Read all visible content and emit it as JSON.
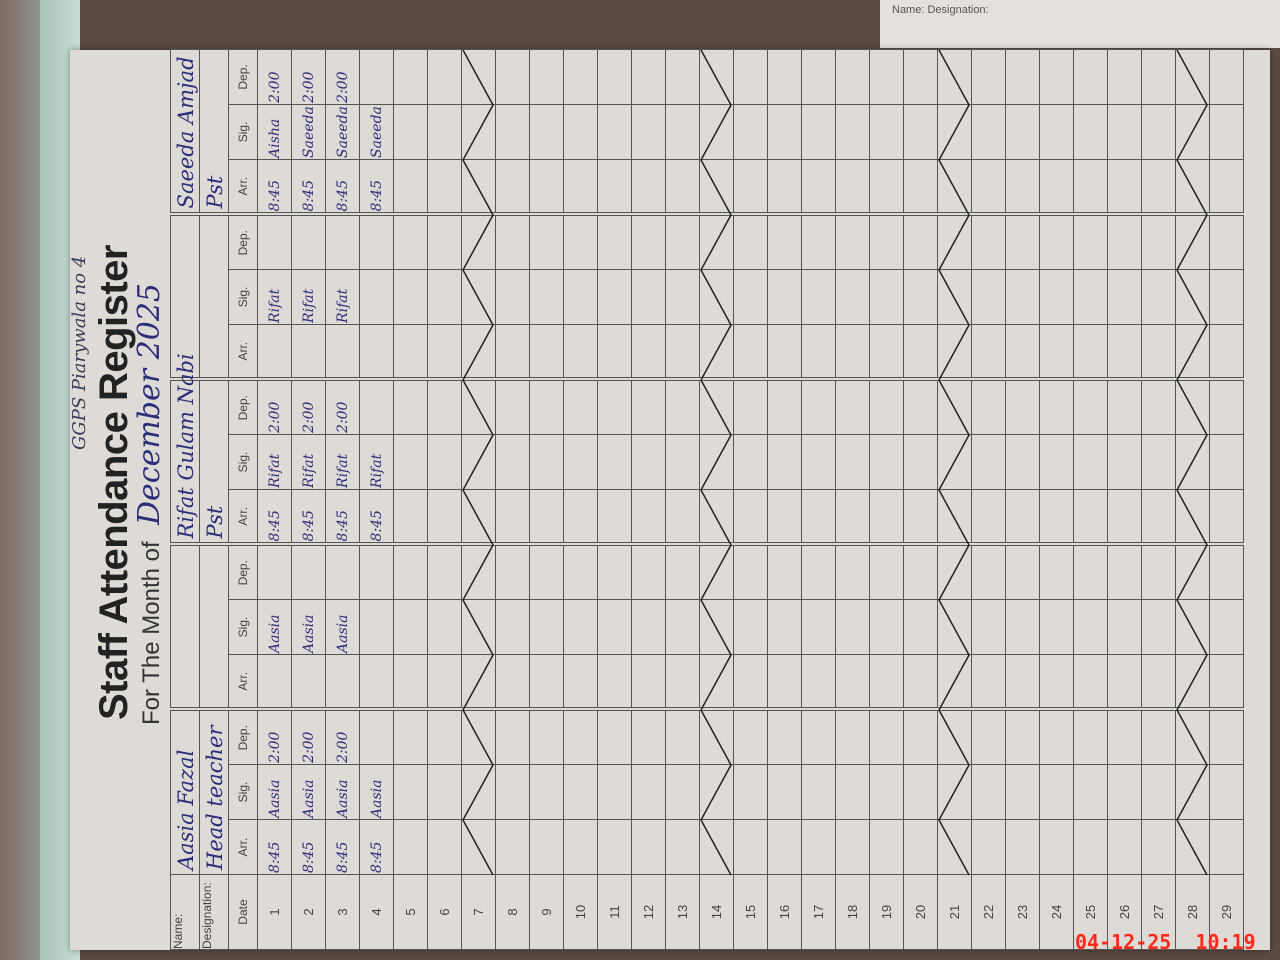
{
  "register": {
    "school_note": "GGPS Piarywala no 4",
    "title": "Staff Attendance Register",
    "month_label": "For The Month of",
    "month_value": "December 2025",
    "name_label": "Name:",
    "designation_label": "Designation:",
    "date_header": "Date",
    "col_headers": [
      "Arr.",
      "Sig.",
      "Dep."
    ],
    "teachers": [
      {
        "name": "Aasia Fazal",
        "designation": "Head teacher",
        "entries": [
          [
            "8:45",
            "Aasia",
            "2:00"
          ],
          [
            "8:45",
            "Aasia",
            "2:00"
          ],
          [
            "8:45",
            "Aasia",
            "2:00"
          ],
          [
            "8:45",
            "Aasia",
            ""
          ]
        ]
      },
      {
        "name": "",
        "designation": "",
        "entries": [
          [
            "",
            "Aasia",
            ""
          ],
          [
            "",
            "Aasia",
            ""
          ],
          [
            "",
            "Aasia",
            ""
          ],
          [
            "",
            "",
            ""
          ]
        ]
      },
      {
        "name": "Rifat Gulam Nabi",
        "designation": "Pst",
        "entries": [
          [
            "8:45",
            "Rifat",
            "2:00"
          ],
          [
            "8:45",
            "Rifat",
            "2:00"
          ],
          [
            "8:45",
            "Rifat",
            "2:00"
          ],
          [
            "8:45",
            "Rifat",
            ""
          ]
        ]
      },
      {
        "name": "",
        "designation": "",
        "entries": [
          [
            "",
            "Rifat",
            ""
          ],
          [
            "",
            "Rifat",
            ""
          ],
          [
            "",
            "Rifat",
            ""
          ],
          [
            "",
            "",
            ""
          ]
        ]
      },
      {
        "name": "Saeeda Amjad",
        "designation": "Pst",
        "entries": [
          [
            "8:45",
            "Aisha",
            "2:00"
          ],
          [
            "8:45",
            "Saeeda",
            "2:00"
          ],
          [
            "8:45",
            "Saeeda",
            "2:00"
          ],
          [
            "8:45",
            "Saeeda",
            ""
          ]
        ]
      }
    ],
    "dates": [
      1,
      2,
      3,
      4,
      5,
      6,
      7,
      8,
      9,
      10,
      11,
      12,
      13,
      14,
      15,
      16,
      17,
      18,
      19,
      20,
      21,
      22,
      23,
      24,
      25,
      26,
      27,
      28,
      29
    ],
    "crossed_out_dates": [
      7,
      14,
      21,
      28
    ]
  },
  "next_page": {
    "labels": "Name: Designation:"
  },
  "timestamp": "04-12-25  10:19",
  "colors": {
    "ink": "#2b2f7a",
    "timestamp": "#ff2a1a"
  }
}
